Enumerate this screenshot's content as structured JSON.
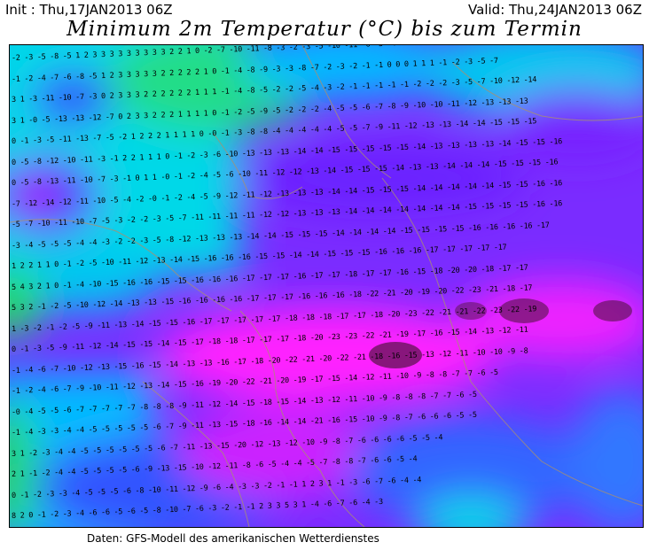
{
  "header": {
    "init": "Init : Thu,17JAN2013 06Z",
    "valid": "Valid: Thu,24JAN2013 06Z",
    "title": "Minimum 2m Temperatur (°C) bis zum Termin"
  },
  "footer": "Daten: GFS-Modell des amerikanischen Wetterdienstes",
  "map": {
    "variable": "Minimum 2m temperature (°C)",
    "palette": {
      "warm": "#22dd66",
      "mild": "#00e6e6",
      "zero": "#00aaff",
      "cold": "#3355ff",
      "colder": "#8822ff",
      "very_cold": "#ff22ff",
      "extreme": "#551144"
    },
    "value_rows": [
      "-2 -3 -5 -8 -5 1 2 3 3 3 3 3 3 3 3 3 2 2 1 0 -2 -7 -10 -11 -8 -3 -2 -3 -5 -10 -11 -6 -5 -4 -3 -2 -1 0 0 0 1 1 1 1 1 -2",
      "-1 -2 -4 -7 -6 -8 -5 1 2 3 3 3 3 3 2 2 2 2 2 1 0 -1 -4 -8 -9 -3 -3 -8 -7 -2 -3 -2 -1 -1 0 0 0 1 1 1 -1 -2 -3 -5 -7",
      "3 1 -3 -11 -10 -7 -3 0 2 3 3 3 2 2 2 2 2 2 1 1 1 -1 -4 -8 -5 -2 -2 -5 -4 -3 -2 -1 -1 -1 -1 -1 -2 -2 -2 -3 -5 -7 -10 -12 -14",
      "3 1 -0 -5 -13 -13 -12 -7 0 2 3 3 2 2 2 1 1 1 1 0 -1 -2 -5 -9 -5 -2 -2 -2 -4 -5 -5 -6 -7 -8 -9 -10 -10 -11 -12 -13 -13 -13",
      "0 -1 -3 -5 -11 -13 -7 -5 -2 1 2 2 2 1 1 1 1 0 -0 -1 -3 -8 -8 -4 -4 -4 -4 -4 -5 -5 -7 -9 -11 -12 -13 -13 -14 -14 -15 -15 -15",
      "0 -5 -8 -12 -10 -11 -3 -1 2 2 1 1 1 0 -1 -2 -3 -6 -10 -13 -13 -13 -14 -14 -15 -15 -15 -15 -15 -14 -13 -13 -13 -13 -14 -15 -15 -16",
      "0 -5 -8 -13 -11 -10 -7 -3 -1 0 1 1 -0 -1 -2 -4 -5 -6 -10 -11 -12 -12 -13 -14 -15 -15 -15 -14 -13 -13 -14 -14 -14 -15 -15 -15 -16",
      "-7 -12 -14 -12 -11 -10 -5 -4 -2 -0 -1 -2 -4 -5 -9 -12 -11 -12 -13 -13 -13 -14 -14 -15 -15 -15 -14 -14 -14 -14 -14 -15 -15 -16 -16",
      "-5 -7 -10 -11 -10 -7 -5 -3 -2 -2 -3 -5 -7 -11 -11 -11 -11 -12 -12 -13 -13 -13 -14 -14 -14 -14 -14 -14 -14 -15 -15 -15 -15 -16 -16",
      "-3 -4 -5 -5 -5 -4 -4 -3 -2 -2 -3 -5 -8 -12 -13 -13 -13 -14 -14 -15 -15 -15 -14 -14 -14 -14 -15 -15 -15 -15 -16 -16 -16 -16 -17",
      "1 2 2 1 1 0 -1 -2 -5 -10 -11 -12 -13 -14 -15 -16 -16 -16 -15 -15 -14 -14 -15 -15 -15 -16 -16 -16 -17 -17 -17 -17 -17",
      "5 4 3 2 1 0 -1 -4 -10 -15 -16 -16 -15 -15 -16 -16 -16 -17 -17 -17 -16 -17 -17 -18 -17 -17 -16 -15 -18 -20 -20 -18 -17 -17",
      "5 3 2 -1 -2 -5 -10 -12 -14 -13 -13 -15 -16 -16 -16 -16 -17 -17 -17 -16 -16 -16 -18 -22 -21 -20 -19 -20 -22 -23 -21 -18 -17",
      "1 -3 -2 -1 -2 -5 -9 -11 -13 -14 -15 -15 -16 -17 -17 -17 -17 -17 -18 -18 -18 -17 -17 -18 -20 -23 -22 -21 -21 -22 -23 -22 -19",
      "0 -1 -3 -5 -9 -11 -12 -14 -15 -15 -14 -15 -17 -18 -18 -17 -17 -17 -18 -20 -23 -23 -22 -21 -19 -17 -16 -15 -14 -13 -12 -11",
      "-1 -4 -6 -7 -10 -12 -13 -15 -16 -15 -14 -13 -13 -16 -17 -18 -20 -22 -21 -20 -22 -21 -18 -16 -15 -13 -12 -11 -10 -10 -9 -8",
      "-1 -2 -4 -6 -7 -9 -10 -11 -12 -13 -14 -15 -16 -19 -20 -22 -21 -20 -19 -17 -15 -14 -12 -11 -10 -9 -8 -8 -7 -7 -6 -5",
      "-0 -4 -5 -5 -6 -7 -7 -7 -7 -7 -8 -8 -8 -9 -11 -12 -14 -15 -18 -15 -14 -13 -12 -11 -10 -9 -8 -8 -8 -7 -7 -6 -5",
      "-1 -4 -3 -3 -4 -4 -5 -5 -5 -5 -5 -6 -7 -9 -11 -13 -15 -18 -16 -14 -14 -21 -16 -15 -10 -9 -8 -7 -6 -6 -6 -5 -5",
      "3 1 -2 -3 -4 -4 -5 -5 -5 -5 -5 -5 -6 -7 -11 -13 -15 -20 -12 -13 -12 -10 -9 -8 -7 -6 -6 -6 -6 -5 -5 -4",
      "2 1 -1 -2 -4 -4 -5 -5 -5 -5 -6 -9 -13 -15 -10 -12 -11 -8 -6 -5 -4 -4 -5 -7 -8 -8 -7 -6 -6 -5 -4",
      "0 -1 -2 -3 -3 -4 -5 -5 -5 -6 -8 -10 -11 -12 -9 -6 -4 -3 -3 -2 -1 -1 1 2 3 1 -1 -3 -6 -7 -6 -4 -4",
      "8 2 0 -1 -2 -3 -4 -6 -6 -5 -6 -5 -8 -10 -7 -6 -3 -2 -1 -1 2 3 3 5 3 1 -4 -6 -7 -6 -4 -3"
    ]
  }
}
